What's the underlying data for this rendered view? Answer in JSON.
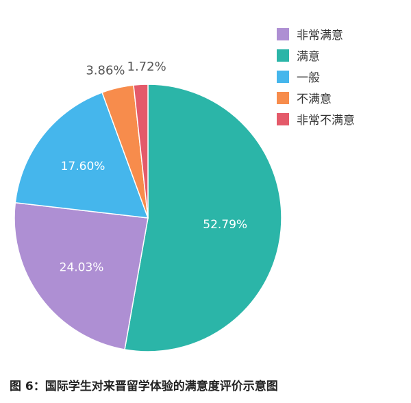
{
  "chart_data": {
    "type": "pie",
    "title": "",
    "series": [
      {
        "label": "满意",
        "value": 52.79,
        "display": "52.79%",
        "color": "#2bb5a8"
      },
      {
        "label": "非常满意",
        "value": 24.03,
        "display": "24.03%",
        "color": "#ae8fd3"
      },
      {
        "label": "一般",
        "value": 17.6,
        "display": "17.60%",
        "color": "#45b6ec"
      },
      {
        "label": "不满意",
        "value": 3.86,
        "display": "3.86%",
        "color": "#f78c4c"
      },
      {
        "label": "非常不满意",
        "value": 1.72,
        "display": "1.72%",
        "color": "#e45a6a"
      }
    ],
    "legend": {
      "position": "top-right",
      "items": [
        {
          "label": "非常满意",
          "color": "#ae8fd3"
        },
        {
          "label": "满意",
          "color": "#2bb5a8"
        },
        {
          "label": "一般",
          "color": "#45b6ec"
        },
        {
          "label": "不满意",
          "color": "#f78c4c"
        },
        {
          "label": "非常不满意",
          "color": "#e45a6a"
        }
      ]
    }
  },
  "caption": "图 6：国际学生对来晋留学体验的满意度评价示意图"
}
